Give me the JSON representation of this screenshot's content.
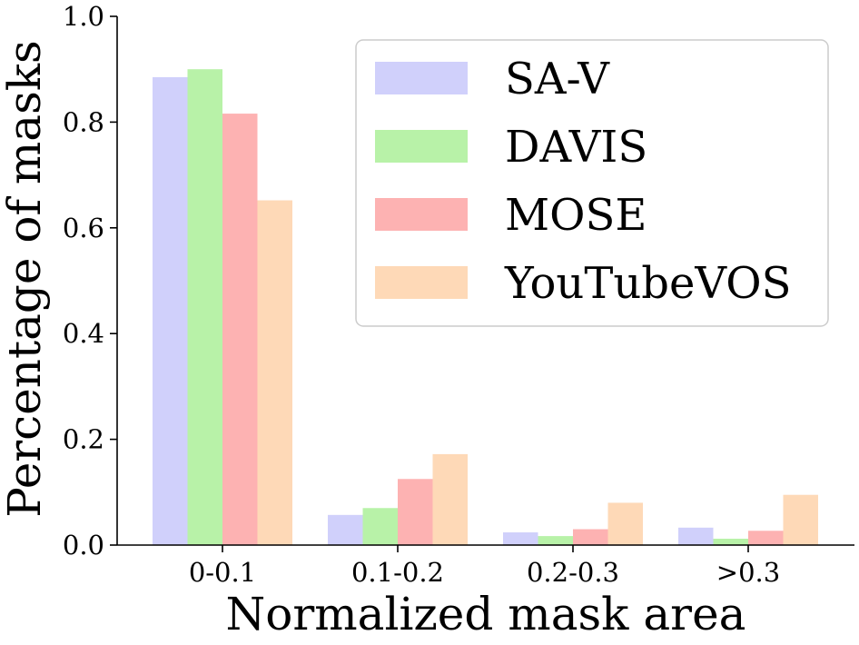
{
  "chart_data": {
    "type": "bar",
    "title": "",
    "xlabel": "Normalized mask area",
    "ylabel": "Percentage of masks",
    "categories": [
      "0-0.1",
      "0.1-0.2",
      "0.2-0.3",
      ">0.3"
    ],
    "ylim": [
      0,
      1.0
    ],
    "yticks": [
      "0.0",
      "0.2",
      "0.4",
      "0.6",
      "0.8",
      "1.0"
    ],
    "grid": false,
    "legend_position": "top-right",
    "series": [
      {
        "name": "SA-V",
        "color": "#d0d0fb",
        "values": [
          0.885,
          0.057,
          0.024,
          0.033
        ]
      },
      {
        "name": "DAVIS",
        "color": "#b8f2a8",
        "values": [
          0.9,
          0.07,
          0.017,
          0.012
        ]
      },
      {
        "name": "MOSE",
        "color": "#fdb2b2",
        "values": [
          0.816,
          0.125,
          0.03,
          0.027
        ]
      },
      {
        "name": "YouTubeVOS",
        "color": "#fed9b7",
        "values": [
          0.652,
          0.172,
          0.08,
          0.095
        ]
      }
    ]
  }
}
